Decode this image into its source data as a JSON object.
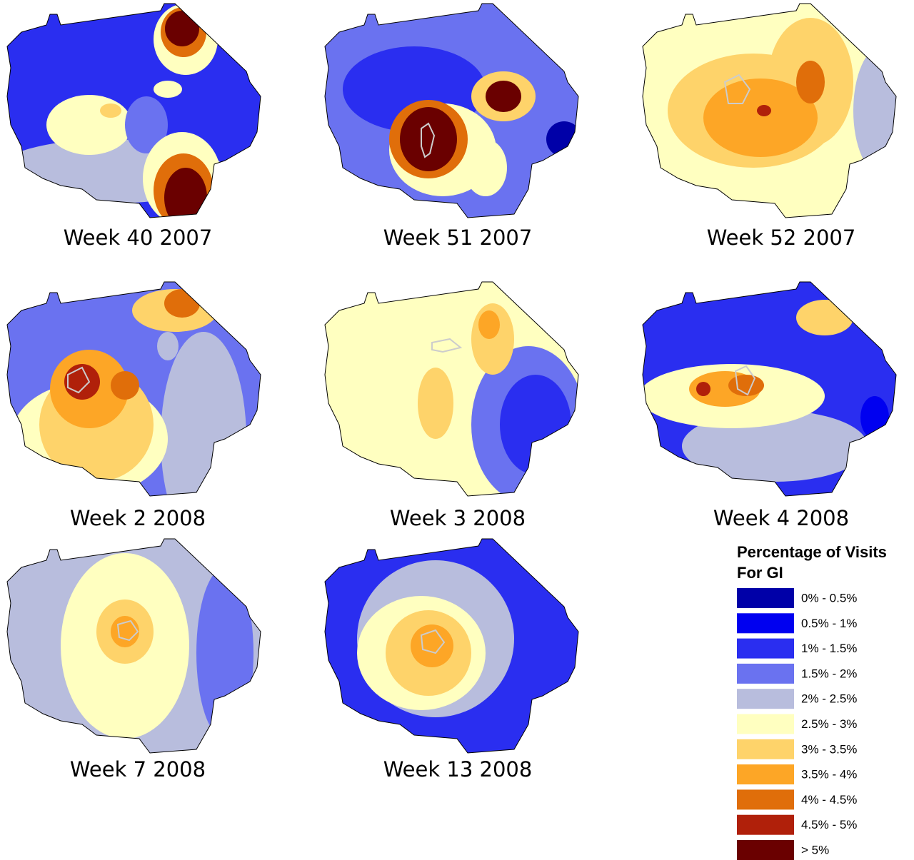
{
  "panels": [
    "Week 40 2007",
    "Week 51 2007",
    "Week 52 2007",
    "Week 2 2008",
    "Week 3 2008",
    "Week 4 2008",
    "Week 7 2008",
    "Week 13 2008"
  ],
  "legend": {
    "title_lines": [
      "Percentage of Visits",
      "For GI"
    ],
    "items": [
      {
        "label": "0% - 0.5%",
        "color": "#0000a8"
      },
      {
        "label": "0.5% - 1%",
        "color": "#0000f0"
      },
      {
        "label": "1% - 1.5%",
        "color": "#2a2ef0"
      },
      {
        "label": "1.5% - 2%",
        "color": "#6a72f0"
      },
      {
        "label": "2% - 2.5%",
        "color": "#b8bddd"
      },
      {
        "label": "2.5% - 3%",
        "color": "#ffffc0"
      },
      {
        "label": "3% - 3.5%",
        "color": "#fed36a"
      },
      {
        "label": "3.5% - 4%",
        "color": "#fda626"
      },
      {
        "label": "4% - 4.5%",
        "color": "#e06e0a"
      },
      {
        "label": "4.5% - 5%",
        "color": "#b0200a"
      },
      {
        "label": "> 5%",
        "color": "#6a0000"
      }
    ]
  }
}
